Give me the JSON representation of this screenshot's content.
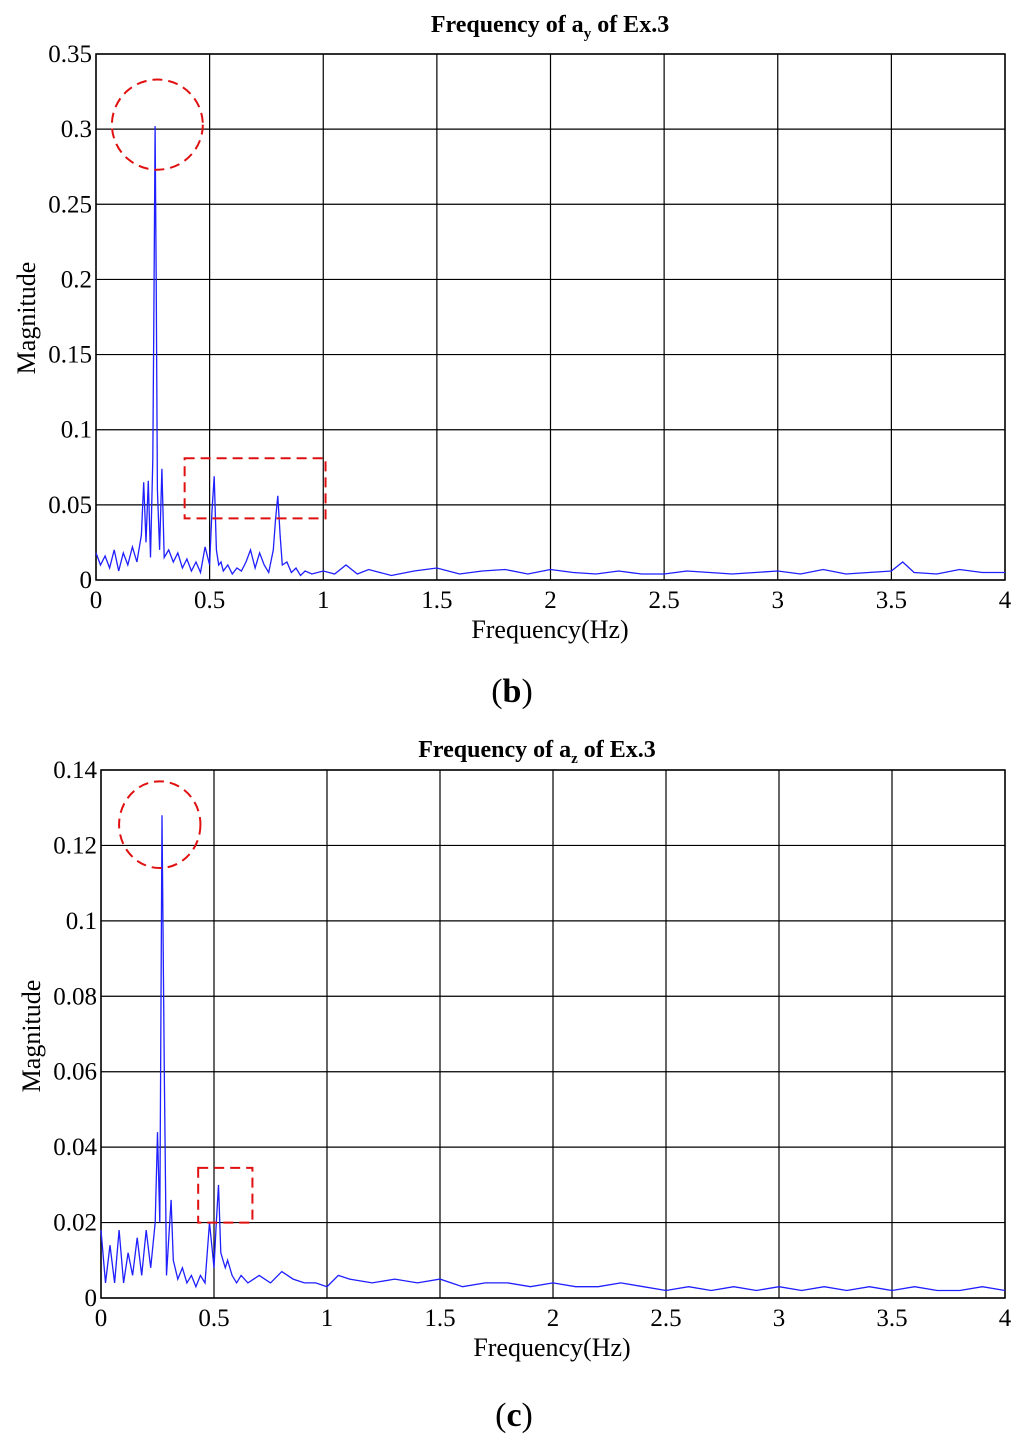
{
  "figure": {
    "captions": [
      "(b)",
      "(c)"
    ]
  },
  "chart_data": [
    {
      "type": "line",
      "title": "Frequency of a_y of Ex.3",
      "title_parts": {
        "prefix": "Frequency of a",
        "subscript": "y",
        "suffix": " of Ex.3"
      },
      "caption": "(b)",
      "xlabel": "Frequency(Hz)",
      "ylabel": "Magnitude",
      "xlim": [
        0,
        4
      ],
      "ylim": [
        0,
        0.35
      ],
      "xticks": [
        0,
        0.5,
        1,
        1.5,
        2,
        2.5,
        3,
        3.5,
        4
      ],
      "xtick_labels": [
        "0",
        "0.5",
        "1",
        "1.5",
        "2",
        "2.5",
        "3",
        "3.5",
        "4"
      ],
      "yticks": [
        0,
        0.05,
        0.1,
        0.15,
        0.2,
        0.25,
        0.3,
        0.35
      ],
      "ytick_labels": [
        "0",
        "0.05",
        "0.1",
        "0.15",
        "0.2",
        "0.25",
        "0.3",
        "0.35"
      ],
      "grid": true,
      "colors": {
        "series": "#1f1fff",
        "annotation": "#e01010"
      },
      "series": [
        {
          "x": [
            0,
            0.02,
            0.04,
            0.06,
            0.08,
            0.1,
            0.12,
            0.14,
            0.16,
            0.18,
            0.2,
            0.21,
            0.22,
            0.23,
            0.24,
            0.25,
            0.255,
            0.26,
            0.265,
            0.27,
            0.28,
            0.29,
            0.3,
            0.32,
            0.34,
            0.36,
            0.38,
            0.4,
            0.42,
            0.44,
            0.46,
            0.48,
            0.5,
            0.51,
            0.52,
            0.53,
            0.54,
            0.55,
            0.56,
            0.58,
            0.6,
            0.62,
            0.64,
            0.66,
            0.68,
            0.7,
            0.72,
            0.74,
            0.76,
            0.78,
            0.79,
            0.8,
            0.81,
            0.82,
            0.84,
            0.86,
            0.88,
            0.9,
            0.92,
            0.95,
            1.0,
            1.05,
            1.1,
            1.15,
            1.2,
            1.3,
            1.4,
            1.5,
            1.6,
            1.7,
            1.8,
            1.9,
            2.0,
            2.1,
            2.2,
            2.3,
            2.4,
            2.5,
            2.6,
            2.7,
            2.8,
            2.9,
            3.0,
            3.1,
            3.2,
            3.3,
            3.4,
            3.5,
            3.55,
            3.6,
            3.7,
            3.8,
            3.9,
            4.0
          ],
          "y": [
            0.018,
            0.01,
            0.016,
            0.008,
            0.02,
            0.006,
            0.018,
            0.01,
            0.022,
            0.012,
            0.03,
            0.065,
            0.025,
            0.066,
            0.015,
            0.08,
            0.18,
            0.302,
            0.2,
            0.06,
            0.02,
            0.074,
            0.015,
            0.02,
            0.012,
            0.018,
            0.008,
            0.014,
            0.006,
            0.012,
            0.005,
            0.022,
            0.01,
            0.045,
            0.069,
            0.02,
            0.01,
            0.012,
            0.006,
            0.01,
            0.004,
            0.008,
            0.006,
            0.012,
            0.02,
            0.008,
            0.018,
            0.01,
            0.005,
            0.02,
            0.04,
            0.056,
            0.03,
            0.01,
            0.012,
            0.005,
            0.008,
            0.003,
            0.006,
            0.004,
            0.006,
            0.004,
            0.01,
            0.004,
            0.007,
            0.003,
            0.006,
            0.008,
            0.004,
            0.006,
            0.007,
            0.004,
            0.007,
            0.005,
            0.004,
            0.006,
            0.004,
            0.004,
            0.006,
            0.005,
            0.004,
            0.005,
            0.006,
            0.004,
            0.007,
            0.004,
            0.005,
            0.006,
            0.012,
            0.005,
            0.004,
            0.007,
            0.005,
            0.005
          ]
        }
      ],
      "annotations": [
        {
          "shape": "circle",
          "cx": 0.27,
          "cy": 0.303,
          "rx": 0.2,
          "ry": 0.03
        },
        {
          "shape": "rect",
          "x0": 0.39,
          "x1": 1.01,
          "y0": 0.041,
          "y1": 0.081
        }
      ]
    },
    {
      "type": "line",
      "title": "Frequency of a_z of Ex.3",
      "title_parts": {
        "prefix": "Frequency of a",
        "subscript": "z",
        "suffix": " of Ex.3"
      },
      "caption": "(c)",
      "xlabel": "Frequency(Hz)",
      "ylabel": "Magnitude",
      "xlim": [
        0,
        4
      ],
      "ylim": [
        0,
        0.14
      ],
      "xticks": [
        0,
        0.5,
        1,
        1.5,
        2,
        2.5,
        3,
        3.5,
        4
      ],
      "xtick_labels": [
        "0",
        "0.5",
        "1",
        "1.5",
        "2",
        "2.5",
        "3",
        "3.5",
        "4"
      ],
      "yticks": [
        0,
        0.02,
        0.04,
        0.06,
        0.08,
        0.1,
        0.12,
        0.14
      ],
      "ytick_labels": [
        "0",
        "0.02",
        "0.04",
        "0.06",
        "0.08",
        "0.1",
        "0.12",
        "0.14"
      ],
      "grid": true,
      "colors": {
        "series": "#1f1fff",
        "annotation": "#e01010"
      },
      "series": [
        {
          "x": [
            0,
            0.02,
            0.04,
            0.06,
            0.08,
            0.1,
            0.12,
            0.14,
            0.16,
            0.18,
            0.2,
            0.22,
            0.24,
            0.25,
            0.26,
            0.27,
            0.28,
            0.29,
            0.3,
            0.31,
            0.32,
            0.34,
            0.36,
            0.38,
            0.4,
            0.42,
            0.44,
            0.46,
            0.48,
            0.5,
            0.51,
            0.52,
            0.53,
            0.54,
            0.55,
            0.56,
            0.58,
            0.6,
            0.62,
            0.65,
            0.7,
            0.75,
            0.8,
            0.85,
            0.9,
            0.95,
            1.0,
            1.05,
            1.1,
            1.2,
            1.3,
            1.4,
            1.5,
            1.6,
            1.7,
            1.8,
            1.9,
            2.0,
            2.1,
            2.2,
            2.3,
            2.4,
            2.5,
            2.6,
            2.7,
            2.8,
            2.9,
            3.0,
            3.1,
            3.2,
            3.3,
            3.4,
            3.5,
            3.6,
            3.7,
            3.8,
            3.9,
            4.0
          ],
          "y": [
            0.018,
            0.004,
            0.014,
            0.004,
            0.018,
            0.004,
            0.012,
            0.006,
            0.016,
            0.006,
            0.018,
            0.008,
            0.02,
            0.044,
            0.02,
            0.128,
            0.06,
            0.006,
            0.016,
            0.026,
            0.01,
            0.005,
            0.008,
            0.004,
            0.006,
            0.003,
            0.006,
            0.004,
            0.02,
            0.008,
            0.02,
            0.03,
            0.012,
            0.01,
            0.008,
            0.01,
            0.006,
            0.004,
            0.006,
            0.004,
            0.006,
            0.004,
            0.007,
            0.005,
            0.004,
            0.004,
            0.003,
            0.006,
            0.005,
            0.004,
            0.005,
            0.004,
            0.005,
            0.003,
            0.004,
            0.004,
            0.003,
            0.004,
            0.003,
            0.003,
            0.004,
            0.003,
            0.002,
            0.003,
            0.002,
            0.003,
            0.002,
            0.003,
            0.002,
            0.003,
            0.002,
            0.003,
            0.002,
            0.003,
            0.002,
            0.002,
            0.003,
            0.002
          ]
        }
      ],
      "annotations": [
        {
          "shape": "circle",
          "cx": 0.26,
          "cy": 0.1255,
          "rx": 0.18,
          "ry": 0.0115
        },
        {
          "shape": "rect",
          "x0": 0.43,
          "x1": 0.67,
          "y0": 0.02,
          "y1": 0.0345
        }
      ]
    }
  ]
}
